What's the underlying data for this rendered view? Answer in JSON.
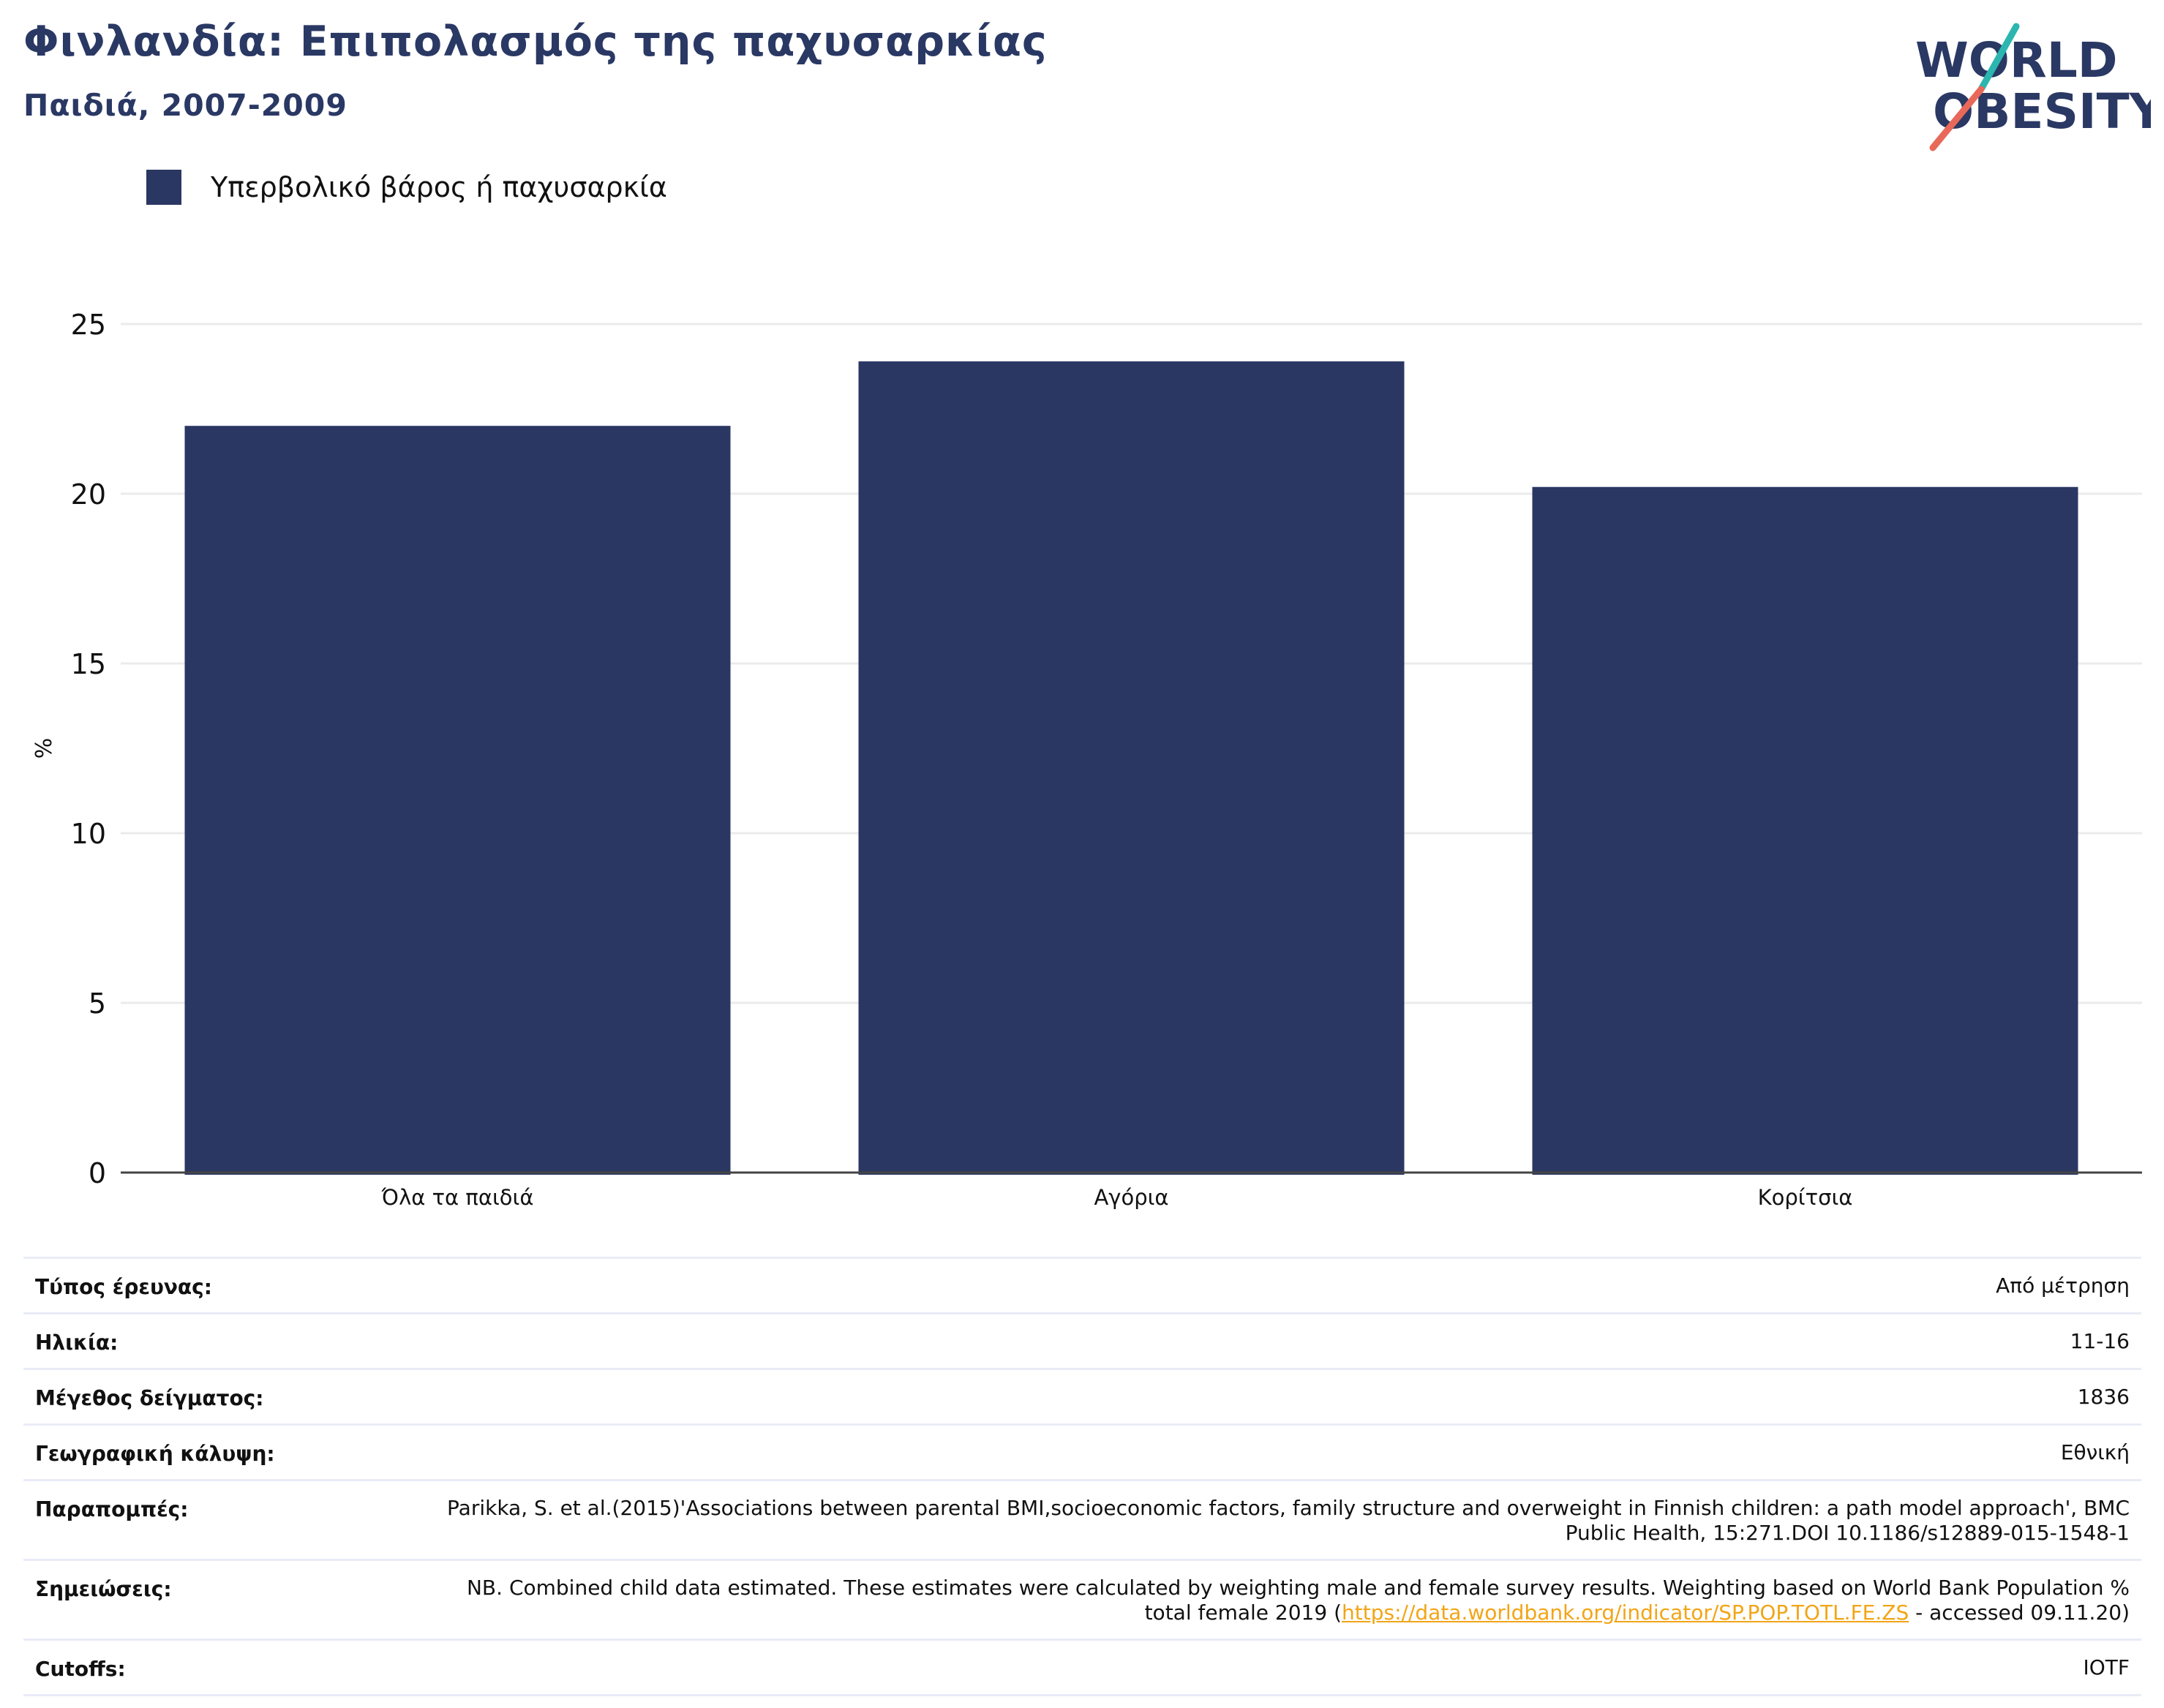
{
  "header": {
    "title": "Φινλανδία: Επιπολασμός της παχυσαρκίας",
    "subtitle": "Παιδιά, 2007-2009"
  },
  "logo": {
    "line1": "WORLD",
    "line2": "OBESITY",
    "colors": {
      "text": "#2a3864",
      "teal": "#2bb6b0",
      "coral": "#e8685a"
    }
  },
  "chart_data": {
    "type": "bar",
    "categories": [
      "Όλα τα παιδιά",
      "Αγόρια",
      "Κορίτσια"
    ],
    "series": [
      {
        "name": "Υπερβολικό βάρος ή παχυσαρκία",
        "values": [
          22.0,
          23.9,
          20.2
        ],
        "color": "#2b3763"
      }
    ],
    "title": "",
    "xlabel": "",
    "ylabel": "%",
    "ylim": [
      0,
      25
    ],
    "yticks": [
      0,
      5,
      10,
      15,
      20,
      25
    ],
    "grid": true,
    "legend": "top-left"
  },
  "info": [
    {
      "label": "Τύπος έρευνας:",
      "value": "Από μέτρηση"
    },
    {
      "label": "Ηλικία:",
      "value": "11-16"
    },
    {
      "label": "Μέγεθος δείγματος:",
      "value": "1836"
    },
    {
      "label": "Γεωγραφική κάλυψη:",
      "value": "Εθνική"
    },
    {
      "label": "Παραπομπές:",
      "value": "Parikka, S. et al.(2015)'Associations between parental BMI,socioeconomic factors, family structure and overweight in Finnish children: a path model approach', BMC Public Health, 15:271.DOI 10.1186/s12889-015-1548-1"
    },
    {
      "label": "Σημειώσεις:",
      "value_before": "NB. Combined child data estimated. These estimates were calculated by weighting male and female survey results. Weighting based on World Bank Population % total female 2019 (",
      "link": "https://data.worldbank.org/indicator/SP.POP.TOTL.FE.ZS",
      "value_after": " - accessed 09.11.20)"
    },
    {
      "label": "Cutoffs:",
      "value": "IOTF"
    }
  ]
}
